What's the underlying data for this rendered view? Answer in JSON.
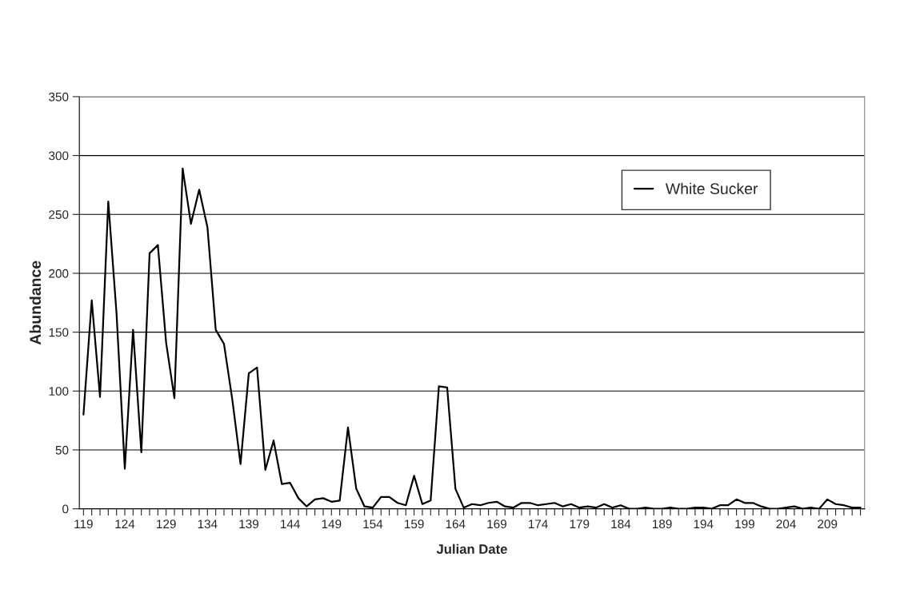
{
  "chart_data": {
    "type": "line",
    "xlabel": "Julian Date",
    "ylabel": "Abundance",
    "categories": [
      "119",
      null,
      null,
      null,
      null,
      "124",
      null,
      null,
      null,
      null,
      "129",
      null,
      null,
      null,
      null,
      "134",
      null,
      null,
      null,
      null,
      "139",
      null,
      null,
      null,
      null,
      "144",
      null,
      null,
      null,
      null,
      "149",
      null,
      null,
      null,
      null,
      "154",
      null,
      null,
      null,
      null,
      "159",
      null,
      null,
      null,
      null,
      "164",
      null,
      null,
      null,
      null,
      "169",
      null,
      null,
      null,
      null,
      "174",
      null,
      null,
      null,
      null,
      "179",
      null,
      null,
      null,
      null,
      "184",
      null,
      null,
      null,
      null,
      "189",
      null,
      null,
      null,
      null,
      "194",
      null,
      null,
      null,
      null,
      "199",
      null,
      null,
      null,
      null,
      "204",
      null,
      null,
      null,
      null,
      "209",
      null,
      null,
      null,
      null
    ],
    "series": [
      {
        "name": "White Sucker",
        "color": "#000000",
        "values": [
          80,
          177,
          95,
          261,
          166,
          34,
          152,
          48,
          217,
          224,
          141,
          94,
          289,
          242,
          271,
          239,
          152,
          140,
          93,
          38,
          115,
          120,
          33,
          58,
          21,
          22,
          9,
          2,
          8,
          9,
          6,
          7,
          69,
          17,
          2,
          1,
          10,
          10,
          5,
          3,
          28,
          4,
          7,
          104,
          103,
          17,
          1,
          4,
          3,
          5,
          6,
          2,
          1,
          5,
          5,
          3,
          4,
          5,
          2,
          4,
          1,
          2,
          1,
          4,
          1,
          3,
          0,
          0,
          1,
          0,
          0,
          1,
          0,
          0,
          1,
          1,
          0,
          3,
          3,
          8,
          5,
          5,
          2,
          0,
          0,
          1,
          2,
          0,
          1,
          0,
          8,
          4,
          3,
          1,
          1
        ]
      }
    ],
    "ylim": [
      0,
      350
    ],
    "yticks": [
      0,
      50,
      100,
      150,
      200,
      250,
      300,
      350
    ],
    "grid": "y",
    "legend": "top right",
    "marker": "none",
    "line_style": "solid"
  }
}
